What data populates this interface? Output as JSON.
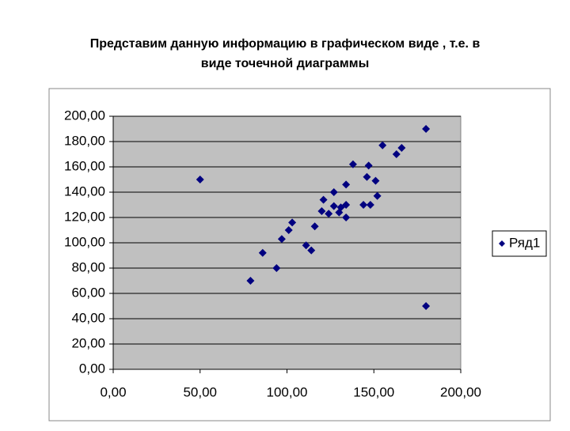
{
  "chart_data": {
    "type": "scatter",
    "title": [
      "Представим данную информацию в графическом виде , т.е. в",
      "виде точечной диаграммы"
    ],
    "series": [
      {
        "name": "Ряд1",
        "color": "#000080",
        "x": [
          50,
          180,
          180,
          79,
          86,
          94,
          97,
          101,
          103,
          111,
          114,
          116,
          120,
          121,
          124,
          127,
          127,
          130,
          131,
          134,
          134,
          134,
          138,
          144,
          146,
          147,
          148,
          151,
          152,
          155,
          163,
          166
        ],
        "values": [
          150,
          190,
          50,
          70,
          92,
          80,
          103,
          110,
          116,
          98,
          94,
          113,
          125,
          134,
          123,
          129,
          140,
          124,
          128,
          130,
          146,
          120,
          162,
          130,
          152,
          161,
          130,
          149,
          137,
          177,
          170,
          175
        ]
      }
    ],
    "xlim": [
      0,
      200
    ],
    "xticks": [
      {
        "value": 0,
        "label": "0,00"
      },
      {
        "value": 50,
        "label": "50,00"
      },
      {
        "value": 100,
        "label": "100,00"
      },
      {
        "value": 150,
        "label": "150,00"
      },
      {
        "value": 200,
        "label": "200,00"
      }
    ],
    "ylim": [
      0,
      200
    ],
    "yticks": [
      {
        "value": 0,
        "label": "0,00"
      },
      {
        "value": 20,
        "label": "20,00"
      },
      {
        "value": 40,
        "label": "40,00"
      },
      {
        "value": 60,
        "label": "60,00"
      },
      {
        "value": 80,
        "label": "80,00"
      },
      {
        "value": 100,
        "label": "100,00"
      },
      {
        "value": 120,
        "label": "120,00"
      },
      {
        "value": 140,
        "label": "140,00"
      },
      {
        "value": 160,
        "label": "160,00"
      },
      {
        "value": 180,
        "label": "180,00"
      },
      {
        "value": 200,
        "label": "200,00"
      }
    ],
    "grid": true,
    "legend": "right"
  }
}
